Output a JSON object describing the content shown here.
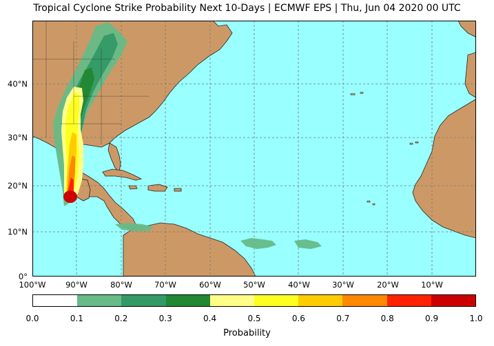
{
  "title": "Tropical Cyclone Strike Probability Next 10-Days | ECMWF EPS | Thu, Jun 04 2020 00 UTC",
  "map": {
    "lat_labels": [
      "40°N",
      "30°N",
      "20°N",
      "10°N",
      "0°"
    ],
    "lon_labels": [
      "100°W",
      "90°W",
      "80°W",
      "70°W",
      "60°W",
      "50°W",
      "40°W",
      "30°W",
      "20°W",
      "10°W"
    ],
    "colors": {
      "ocean": "#99ffff",
      "land": "#cc9966",
      "border": "#222222",
      "grid": "#777777"
    }
  },
  "colorbar": {
    "label": "Probability",
    "ticks": [
      "0.0",
      "0.1",
      "0.2",
      "0.3",
      "0.4",
      "0.5",
      "0.6",
      "0.7",
      "0.8",
      "0.9",
      "1.0"
    ],
    "colors": [
      "#ffffff",
      "#66bb88",
      "#339966",
      "#228833",
      "#ffff88",
      "#ffff22",
      "#ffcc00",
      "#ff8800",
      "#ff2200",
      "#cc0000"
    ]
  }
}
